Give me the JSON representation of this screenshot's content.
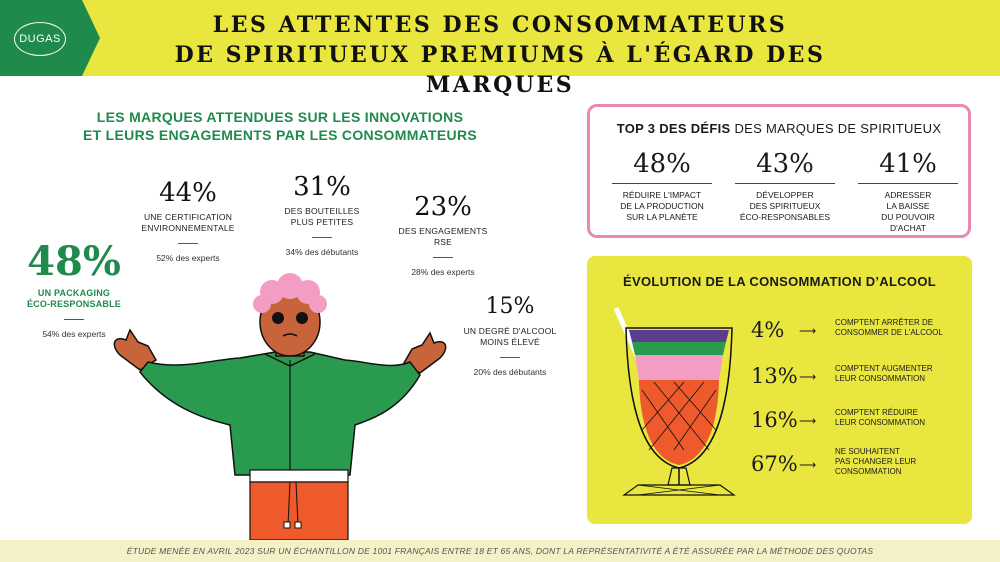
{
  "header": {
    "logo": "DUGAS",
    "title_line1": "LES ATTENTES DES CONSOMMATEURS",
    "title_line2": "DE SPIRITUEUX PREMIUMS À L'ÉGARD DES MARQUES",
    "colors": {
      "yellow": "#e9e63f",
      "green": "#1f8a4c",
      "pink": "#e889b5"
    }
  },
  "innovations": {
    "title_line1": "LES MARQUES ATTENDUES SUR LES INNOVATIONS",
    "title_line2": "ET LEURS ENGAGEMENTS PAR LES CONSOMMATEURS",
    "items": [
      {
        "pct": "48%",
        "label_line1": "UN PACKAGING",
        "label_line2": "ÉCO-RESPONSABLE",
        "sub": "54% des experts"
      },
      {
        "pct": "44%",
        "label_line1": "UNE CERTIFICATION",
        "label_line2": "ENVIRONNEMENTALE",
        "sub": "52% des experts"
      },
      {
        "pct": "31%",
        "label_line1": "DES BOUTEILLES",
        "label_line2": "PLUS PETITES",
        "sub": "34% des débutants"
      },
      {
        "pct": "23%",
        "label_line1": "DES ENGAGEMENTS",
        "label_line2": "RSE",
        "sub": "28% des experts"
      },
      {
        "pct": "15%",
        "label_line1": "UN DEGRÉ D'ALCOOL",
        "label_line2": "MOINS ÉLEVÉ",
        "sub": "20% des débutants"
      }
    ]
  },
  "top3": {
    "title_bold": "TOP 3 DES DÉFIS",
    "title_rest": " DES MARQUES DE SPIRITUEUX",
    "items": [
      {
        "pct": "48%",
        "lines": [
          "RÉDUIRE L'IMPACT",
          "DE LA PRODUCTION",
          "SUR LA PLANÈTE"
        ]
      },
      {
        "pct": "43%",
        "lines": [
          "DÉVELOPPER",
          "DES SPIRITUEUX",
          "ÉCO-RESPONSABLES"
        ]
      },
      {
        "pct": "41%",
        "lines": [
          "ADRESSER",
          "LA BAISSE",
          "DU POUVOIR",
          "D'ACHAT"
        ]
      }
    ]
  },
  "evolution": {
    "title": "ÉVOLUTION DE LA CONSOMMATION D’ALCOOL",
    "arrow": "⟶",
    "items": [
      {
        "pct": "4%",
        "lines": [
          "COMPTENT ARRÊTER DE",
          "CONSOMMER DE L'ALCOOL"
        ]
      },
      {
        "pct": "13%",
        "lines": [
          "COMPTENT AUGMENTER",
          "LEUR CONSOMMATION"
        ]
      },
      {
        "pct": "16%",
        "lines": [
          "COMPTENT RÉDUIRE",
          "LEUR CONSOMMATION"
        ]
      },
      {
        "pct": "67%",
        "lines": [
          "NE SOUHAITENT",
          "PAS CHANGER LEUR",
          "CONSOMMATION"
        ]
      }
    ]
  },
  "footer": {
    "text": "ÉTUDE MENÉE EN AVRIL 2023 SUR UN ÉCHANTILLON DE 1001 FRANÇAIS ENTRE 18 ET 65 ANS, DONT LA REPRÉSENTATIVITÉ A ÉTÉ ASSURÉE PAR LA MÉTHODE DES QUOTAS"
  }
}
